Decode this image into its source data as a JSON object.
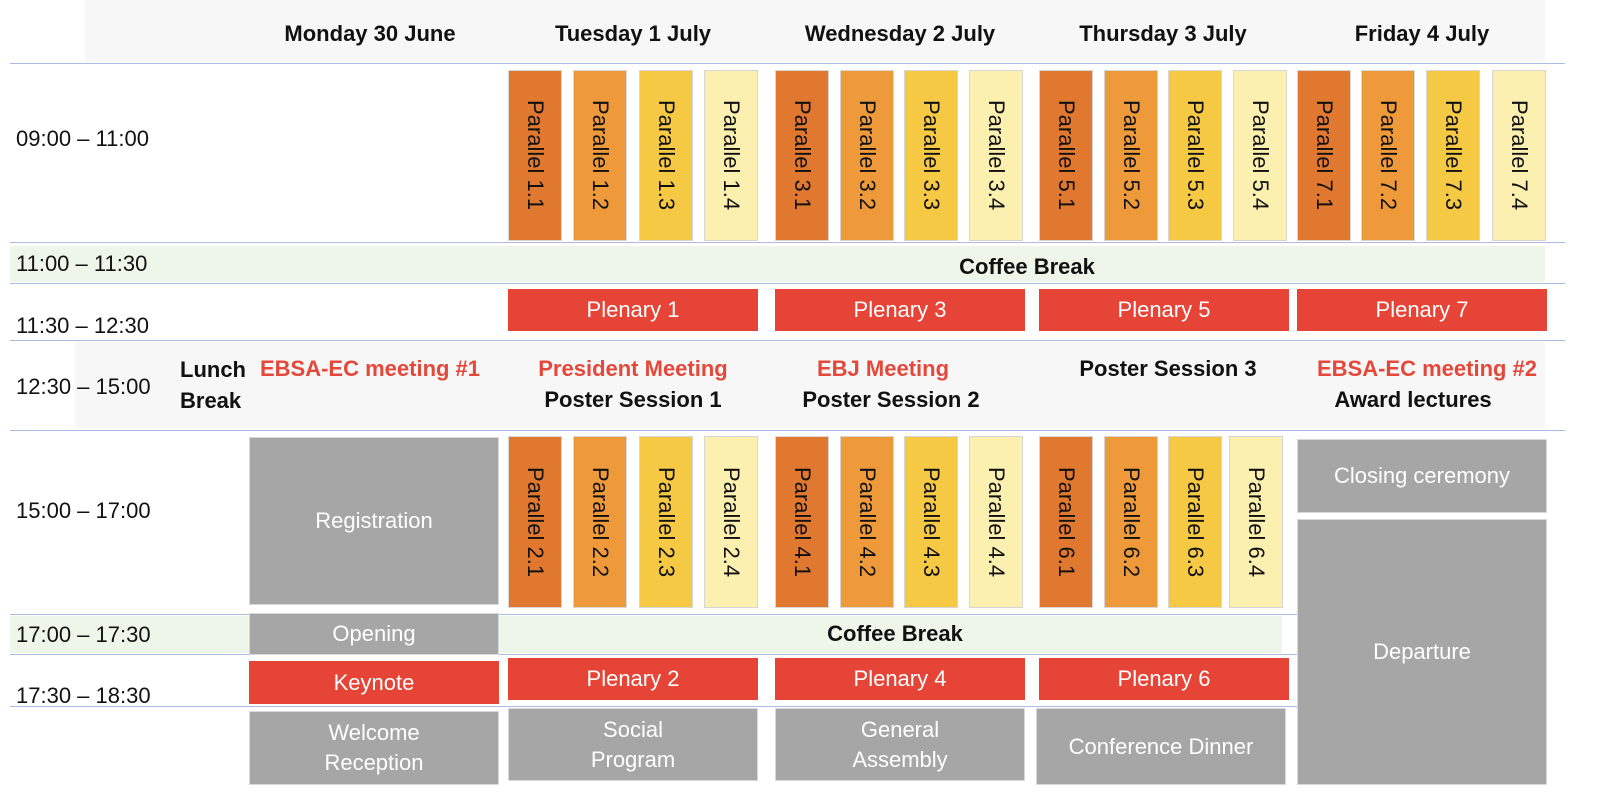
{
  "days": [
    "Monday 30 June",
    "Tuesday 1 July",
    "Wednesday 2 July",
    "Thursday 3 July",
    "Friday 4 July"
  ],
  "times": [
    "09:00 – 11:00",
    "11:00 – 11:30",
    "11:30 – 12:30",
    "12:30 – 15:00",
    "15:00 – 17:00",
    "17:00 – 17:30",
    "17:30 – 18:30"
  ],
  "coffee_break": "Coffee Break",
  "morning_parallels": [
    [
      "Parallel 1.1",
      "Parallel 1.2",
      "Parallel 1.3",
      "Parallel 1.4"
    ],
    [
      "Parallel 3.1",
      "Parallel 3.2",
      "Parallel 3.3",
      "Parallel 3.4"
    ],
    [
      "Parallel 5.1",
      "Parallel 5.2",
      "Parallel 5.3",
      "Parallel 5.4"
    ],
    [
      "Parallel 7.1",
      "Parallel 7.2",
      "Parallel 7.3",
      "Parallel 7.4"
    ]
  ],
  "afternoon_parallels": [
    [
      "Parallel 2.1",
      "Parallel 2.2",
      "Parallel 2.3",
      "Parallel 2.4"
    ],
    [
      "Parallel 4.1",
      "Parallel 4.2",
      "Parallel 4.3",
      "Parallel 4.4"
    ],
    [
      "Parallel 6.1",
      "Parallel 6.2",
      "Parallel 6.3",
      "Parallel 6.4"
    ]
  ],
  "plenaries_morning": [
    "Plenary 1",
    "Plenary 3",
    "Plenary 5",
    "Plenary 7"
  ],
  "plenaries_evening": [
    "Plenary 2",
    "Plenary 4",
    "Plenary 6"
  ],
  "lunch": {
    "label_line1": "Lunch",
    "label_line2": "Break",
    "monday": "EBSA-EC meeting #1",
    "tuesday_meeting": "President Meeting",
    "tuesday_poster": "Poster Session 1",
    "wednesday_meeting": "EBJ Meeting",
    "wednesday_poster": "Poster Session 2",
    "thursday_poster": "Poster Session 3",
    "friday_meeting": "EBSA-EC meeting #2",
    "friday_lectures": "Award lectures"
  },
  "monday": {
    "registration": "Registration",
    "opening": "Opening",
    "keynote": "Keynote",
    "welcome_line1": "Welcome",
    "welcome_line2": "Reception"
  },
  "friday": {
    "closing": "Closing ceremony",
    "departure": "Departure"
  },
  "evening": {
    "social_line1": "Social",
    "social_line2": "Program",
    "assembly_line1": "General",
    "assembly_line2": "Assembly",
    "dinner": "Conference Dinner"
  },
  "colors": {
    "parallel_1": "#e07830",
    "parallel_2": "#ef9a3a",
    "parallel_3": "#f6c945",
    "parallel_4": "#fbf0b0",
    "plenary": "#e64437",
    "grey_block": "#a6a6a6",
    "coffee_band": "#eef6ea",
    "meeting_text": "#e4483b"
  }
}
